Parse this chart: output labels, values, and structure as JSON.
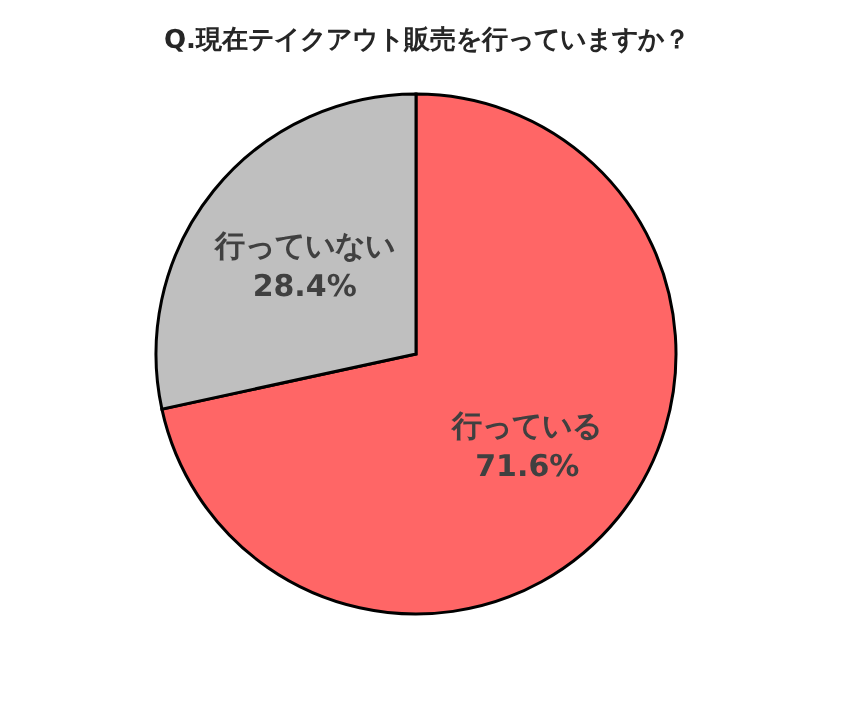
{
  "chart_data": {
    "type": "pie",
    "title": "Q.現在テイクアウト販売を行っていますか？",
    "categories": [
      "行っている",
      "行っていない"
    ],
    "values": [
      71.6,
      28.4
    ],
    "colors": [
      "#ff6666",
      "#bfbfbf"
    ],
    "value_labels": [
      "71.6%",
      "28.4%"
    ]
  }
}
